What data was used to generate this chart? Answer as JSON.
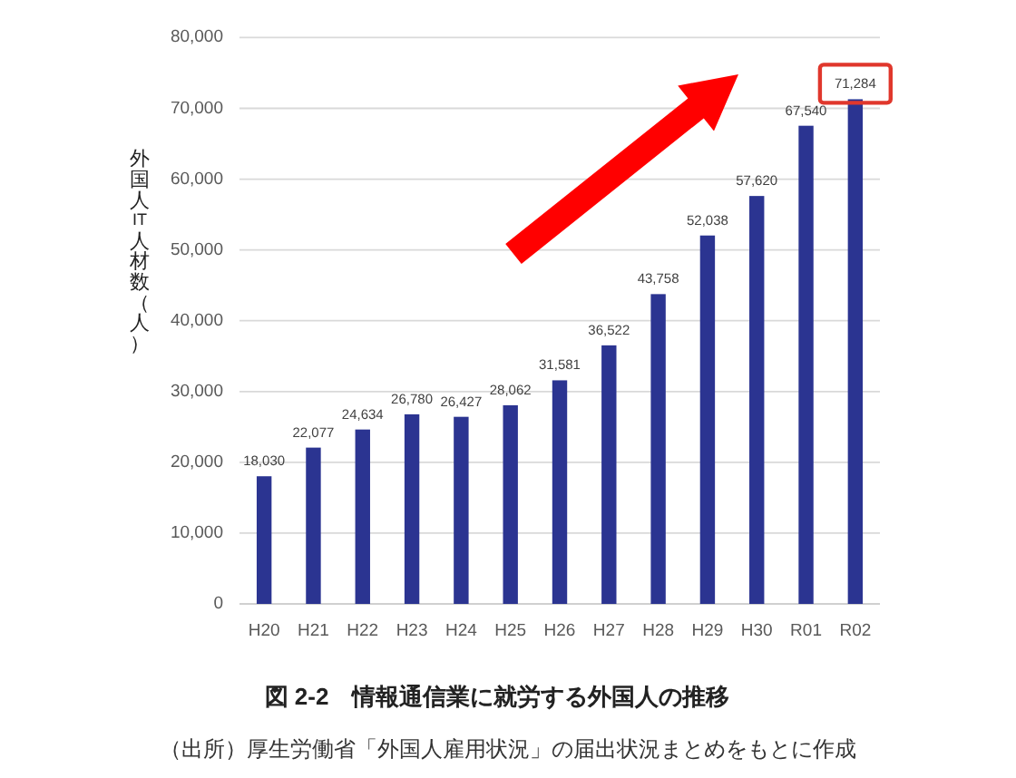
{
  "chart_data": {
    "type": "bar",
    "title": "図 2-2　情報通信業に就労する外国人の推移",
    "ylabel": "外国人IT人材数（人）",
    "annotations": [
      "（出所）厚生労働省「外国人雇用状況」の届出状況まとめをもとに作成"
    ],
    "categories": [
      "H20",
      "H21",
      "H22",
      "H23",
      "H24",
      "H25",
      "H26",
      "H27",
      "H28",
      "H29",
      "H30",
      "R01",
      "R02"
    ],
    "values": [
      18030,
      22077,
      24634,
      26780,
      26427,
      28062,
      31581,
      36522,
      43758,
      52038,
      57620,
      67540,
      71284
    ],
    "value_labels": [
      "18,030",
      "22,077",
      "24,634",
      "26,780",
      "26,427",
      "28,062",
      "31,581",
      "36,522",
      "43,758",
      "52,038",
      "57,620",
      "67,540",
      "71,284"
    ],
    "color": "#2b3491",
    "grid": "y",
    "ylim": [
      0,
      80000
    ],
    "yticks": [
      0,
      {
        "value": 10000,
        "label": "10,000"
      },
      {
        "value": 20000,
        "label": "20,000"
      },
      {
        "value": 30000,
        "label": "30,000"
      },
      {
        "value": 40000,
        "label": "40,000"
      },
      {
        "value": 50000,
        "label": "50,000"
      },
      {
        "value": 60000,
        "label": "60,000"
      },
      {
        "value": 70000,
        "label": "70,000"
      },
      {
        "value": 80000,
        "label": "80,000"
      }
    ]
  }
}
